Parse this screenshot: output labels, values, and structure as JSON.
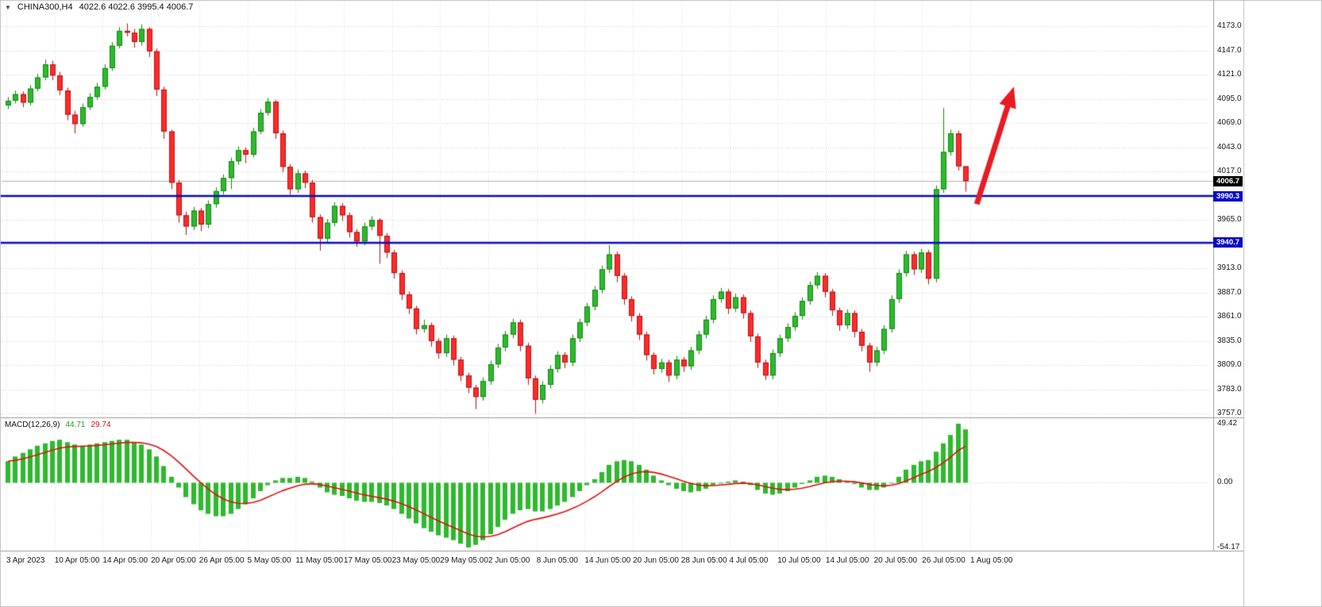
{
  "header": {
    "dropdown_icon": "▼",
    "symbol": "CHINA300,H4",
    "ohlc": "4022.6 4022.6 3995.4 4006.7"
  },
  "badges": {
    "current": {
      "text": "4006.7",
      "value": 4006.7
    },
    "level1": {
      "text": "3990.3",
      "value": 3990.3
    },
    "level2": {
      "text": "3940.7",
      "value": 3940.7
    }
  },
  "price_axis": {
    "labels": [
      {
        "text": "4173.0",
        "value": 4173
      },
      {
        "text": "4147.0",
        "value": 4147
      },
      {
        "text": "4121.0",
        "value": 4121
      },
      {
        "text": "4095.0",
        "value": 4095
      },
      {
        "text": "4069.0",
        "value": 4069
      },
      {
        "text": "4043.0",
        "value": 4043
      },
      {
        "text": "4017.0",
        "value": 4017
      },
      {
        "text": "3965.0",
        "value": 3965
      },
      {
        "text": "3913.0",
        "value": 3913
      },
      {
        "text": "3887.0",
        "value": 3887
      },
      {
        "text": "3861.0",
        "value": 3861
      },
      {
        "text": "3835.0",
        "value": 3835
      },
      {
        "text": "3809.0",
        "value": 3809
      },
      {
        "text": "3783.0",
        "value": 3783
      },
      {
        "text": "3757.0",
        "value": 3757
      }
    ]
  },
  "macd": {
    "title": "MACD(12,26,9)",
    "value": "44.71",
    "signal": "29.74",
    "scale": [
      {
        "text": "49.42",
        "value": 49.42
      },
      {
        "text": "0.00",
        "value": 0
      },
      {
        "text": "-54.17",
        "value": -54.17
      }
    ]
  },
  "time_axis": {
    "labels": [
      "3 Apr 2023",
      "10 Apr 05:00",
      "14 Apr 05:00",
      "20 Apr 05:00",
      "26 Apr 05:00",
      "5 May 05:00",
      "11 May 05:00",
      "17 May 05:00",
      "23 May 05:00",
      "29 May 05:00",
      "2 Jun 05:00",
      "8 Jun 05:00",
      "14 Jun 05:00",
      "20 Jun 05:00",
      "28 Jun 05:00",
      "4 Jul 05:00",
      "10 Jul 05:00",
      "14 Jul 05:00",
      "20 Jul 05:00",
      "26 Jul 05:00",
      "1 Aug 05:00"
    ]
  },
  "annotations": {
    "trend_arrow": {
      "direction": "up",
      "from_index": 130.5,
      "from_price": 3982,
      "to_index": 135.5,
      "to_price": 4108
    }
  },
  "colors": {
    "background": "#ffffff",
    "grid": "#cfcfcf",
    "vgrid": "#dcdcdc",
    "up_fill": "#2db92d",
    "up_border": "#118a11",
    "down_fill": "#ff2a2a",
    "down_border": "#b81414",
    "macd_histogram": "#2db92d",
    "macd_signal": "#e01010",
    "level_line": "#0a0ac8",
    "current_price_line": "#b4b4b4",
    "arrow": "#ea1b22",
    "separator": "#9c9c9c",
    "border": "#c0c0c0"
  },
  "chart_data": [
    {
      "type": "candlestick",
      "name": "CHINA300 H4 price",
      "ylim": [
        3757,
        4173
      ],
      "grid_step": 26,
      "current_price": 4006.7,
      "levels": [
        3990.3,
        3940.7
      ],
      "ohlc": [
        [
          4088,
          4097,
          4084,
          4093
        ],
        [
          4093,
          4104,
          4090,
          4100
        ],
        [
          4100,
          4103,
          4086,
          4091
        ],
        [
          4091,
          4110,
          4088,
          4106
        ],
        [
          4106,
          4122,
          4103,
          4118
        ],
        [
          4118,
          4137,
          4115,
          4132
        ],
        [
          4132,
          4136,
          4115,
          4120
        ],
        [
          4120,
          4124,
          4099,
          4104
        ],
        [
          4104,
          4107,
          4072,
          4078
        ],
        [
          4078,
          4082,
          4058,
          4068
        ],
        [
          4068,
          4090,
          4065,
          4086
        ],
        [
          4086,
          4101,
          4083,
          4097
        ],
        [
          4097,
          4112,
          4094,
          4108
        ],
        [
          4108,
          4132,
          4105,
          4128
        ],
        [
          4128,
          4156,
          4125,
          4152
        ],
        [
          4152,
          4172,
          4149,
          4168
        ],
        [
          4168,
          4176,
          4162,
          4166
        ],
        [
          4166,
          4170,
          4150,
          4156
        ],
        [
          4156,
          4175,
          4152,
          4170
        ],
        [
          4170,
          4172,
          4140,
          4146
        ],
        [
          4146,
          4149,
          4098,
          4105
        ],
        [
          4105,
          4108,
          4052,
          4060
        ],
        [
          4060,
          4062,
          3998,
          4005
        ],
        [
          4005,
          4008,
          3962,
          3970
        ],
        [
          3970,
          3974,
          3949,
          3958
        ],
        [
          3958,
          3979,
          3954,
          3975
        ],
        [
          3975,
          3978,
          3953,
          3960
        ],
        [
          3960,
          3986,
          3956,
          3982
        ],
        [
          3982,
          4000,
          3978,
          3996
        ],
        [
          3996,
          4014,
          3992,
          4010
        ],
        [
          4010,
          4032,
          3998,
          4028
        ],
        [
          4028,
          4044,
          4024,
          4040
        ],
        [
          4040,
          4043,
          4026,
          4035
        ],
        [
          4035,
          4064,
          4032,
          4060
        ],
        [
          4060,
          4084,
          4057,
          4080
        ],
        [
          4080,
          4096,
          4077,
          4092
        ],
        [
          4092,
          4094,
          4052,
          4058
        ],
        [
          4058,
          4061,
          4016,
          4022
        ],
        [
          4022,
          4025,
          3992,
          3998
        ],
        [
          3998,
          4019,
          3994,
          4015
        ],
        [
          4015,
          4018,
          3999,
          4005
        ],
        [
          4005,
          4008,
          3962,
          3968
        ],
        [
          3968,
          3971,
          3932,
          3945
        ],
        [
          3945,
          3966,
          3941,
          3962
        ],
        [
          3962,
          3984,
          3958,
          3980
        ],
        [
          3980,
          3983,
          3964,
          3970
        ],
        [
          3970,
          3973,
          3946,
          3952
        ],
        [
          3952,
          3955,
          3936,
          3942
        ],
        [
          3942,
          3962,
          3938,
          3958
        ],
        [
          3958,
          3969,
          3954,
          3965
        ],
        [
          3965,
          3967,
          3918,
          3948
        ],
        [
          3948,
          3951,
          3924,
          3930
        ],
        [
          3930,
          3933,
          3902,
          3908
        ],
        [
          3908,
          3911,
          3879,
          3885
        ],
        [
          3885,
          3888,
          3864,
          3870
        ],
        [
          3870,
          3873,
          3842,
          3848
        ],
        [
          3848,
          3858,
          3844,
          3852
        ],
        [
          3852,
          3855,
          3829,
          3835
        ],
        [
          3835,
          3838,
          3816,
          3822
        ],
        [
          3822,
          3842,
          3818,
          3838
        ],
        [
          3838,
          3841,
          3809,
          3815
        ],
        [
          3815,
          3818,
          3792,
          3798
        ],
        [
          3798,
          3801,
          3779,
          3785
        ],
        [
          3785,
          3788,
          3762,
          3775
        ],
        [
          3775,
          3796,
          3771,
          3792
        ],
        [
          3792,
          3814,
          3788,
          3810
        ],
        [
          3810,
          3832,
          3806,
          3828
        ],
        [
          3828,
          3846,
          3824,
          3842
        ],
        [
          3842,
          3859,
          3838,
          3855
        ],
        [
          3855,
          3858,
          3824,
          3830
        ],
        [
          3830,
          3833,
          3788,
          3795
        ],
        [
          3795,
          3798,
          3757,
          3772
        ],
        [
          3772,
          3792,
          3768,
          3788
        ],
        [
          3788,
          3809,
          3784,
          3805
        ],
        [
          3805,
          3824,
          3801,
          3820
        ],
        [
          3820,
          3823,
          3806,
          3812
        ],
        [
          3812,
          3842,
          3808,
          3838
        ],
        [
          3838,
          3859,
          3834,
          3855
        ],
        [
          3855,
          3876,
          3851,
          3872
        ],
        [
          3872,
          3894,
          3868,
          3890
        ],
        [
          3890,
          3916,
          3886,
          3912
        ],
        [
          3912,
          3938,
          3908,
          3928
        ],
        [
          3928,
          3931,
          3898,
          3905
        ],
        [
          3905,
          3908,
          3874,
          3880
        ],
        [
          3880,
          3883,
          3856,
          3862
        ],
        [
          3862,
          3865,
          3836,
          3842
        ],
        [
          3842,
          3845,
          3814,
          3820
        ],
        [
          3820,
          3823,
          3799,
          3805
        ],
        [
          3805,
          3816,
          3801,
          3812
        ],
        [
          3812,
          3815,
          3791,
          3798
        ],
        [
          3798,
          3819,
          3794,
          3815
        ],
        [
          3815,
          3818,
          3802,
          3808
        ],
        [
          3808,
          3829,
          3804,
          3825
        ],
        [
          3825,
          3846,
          3821,
          3842
        ],
        [
          3842,
          3862,
          3838,
          3858
        ],
        [
          3858,
          3884,
          3854,
          3880
        ],
        [
          3880,
          3892,
          3876,
          3888
        ],
        [
          3888,
          3891,
          3864,
          3870
        ],
        [
          3870,
          3886,
          3866,
          3882
        ],
        [
          3882,
          3885,
          3859,
          3865
        ],
        [
          3865,
          3868,
          3834,
          3840
        ],
        [
          3840,
          3843,
          3806,
          3812
        ],
        [
          3812,
          3815,
          3793,
          3798
        ],
        [
          3798,
          3826,
          3794,
          3822
        ],
        [
          3822,
          3842,
          3818,
          3838
        ],
        [
          3838,
          3854,
          3834,
          3850
        ],
        [
          3850,
          3866,
          3846,
          3862
        ],
        [
          3862,
          3882,
          3858,
          3878
        ],
        [
          3878,
          3899,
          3874,
          3895
        ],
        [
          3895,
          3909,
          3891,
          3905
        ],
        [
          3905,
          3908,
          3882,
          3888
        ],
        [
          3888,
          3891,
          3862,
          3868
        ],
        [
          3868,
          3871,
          3846,
          3852
        ],
        [
          3852,
          3869,
          3848,
          3865
        ],
        [
          3865,
          3868,
          3839,
          3845
        ],
        [
          3845,
          3848,
          3824,
          3830
        ],
        [
          3830,
          3833,
          3802,
          3812
        ],
        [
          3812,
          3829,
          3808,
          3825
        ],
        [
          3825,
          3852,
          3821,
          3848
        ],
        [
          3848,
          3884,
          3844,
          3880
        ],
        [
          3880,
          3912,
          3876,
          3908
        ],
        [
          3908,
          3932,
          3904,
          3928
        ],
        [
          3928,
          3931,
          3906,
          3912
        ],
        [
          3912,
          3934,
          3908,
          3930
        ],
        [
          3930,
          3933,
          3896,
          3902
        ],
        [
          3902,
          4002,
          3898,
          3998
        ],
        [
          3998,
          4085,
          3994,
          4038
        ],
        [
          4038,
          4062,
          4034,
          4058
        ],
        [
          4058,
          4061,
          4018,
          4022.6
        ],
        [
          4022.6,
          4022.6,
          3995.4,
          4006.7
        ]
      ]
    },
    {
      "type": "bar",
      "name": "MACD(12,26,9) histogram",
      "ylim": [
        -54.17,
        49.42
      ],
      "last_value": 44.71,
      "signal_ema_period": 9,
      "signal_last_value": 29.74,
      "values": [
        18,
        22,
        25,
        28,
        31,
        33,
        35,
        36,
        34,
        32,
        31,
        32,
        33,
        34,
        35,
        36,
        36,
        34,
        32,
        28,
        22,
        14,
        5,
        -4,
        -12,
        -18,
        -23,
        -26,
        -28,
        -28,
        -26,
        -22,
        -18,
        -13,
        -7,
        -2,
        2,
        4,
        4,
        5,
        4,
        1,
        -4,
        -8,
        -10,
        -11,
        -13,
        -15,
        -16,
        -16,
        -17,
        -19,
        -22,
        -26,
        -30,
        -34,
        -38,
        -41,
        -44,
        -46,
        -48,
        -51,
        -54.17,
        -52,
        -48,
        -43,
        -37,
        -31,
        -26,
        -23,
        -22,
        -24,
        -24,
        -22,
        -19,
        -16,
        -12,
        -7,
        -2,
        3,
        9,
        15,
        18,
        19,
        18,
        15,
        11,
        6,
        2,
        -2,
        -5,
        -7,
        -8,
        -7,
        -5,
        -2,
        0,
        1,
        2,
        1,
        -2,
        -6,
        -9,
        -10,
        -9,
        -7,
        -4,
        -1,
        2,
        5,
        6,
        5,
        3,
        1,
        -1,
        -4,
        -6,
        -6,
        -4,
        0,
        5,
        11,
        15,
        18,
        19,
        26,
        33,
        40,
        49.42,
        44.71
      ]
    }
  ]
}
